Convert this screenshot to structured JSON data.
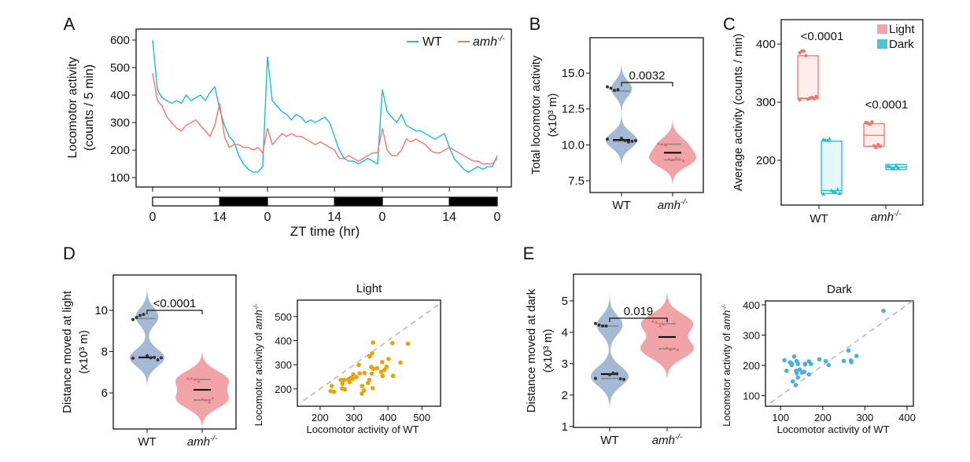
{
  "chart_data": [
    {
      "panel": "A",
      "type": "line",
      "ylabel": [
        "Locomotor activity",
        "(counts / 5 min)"
      ],
      "xlabel": "ZT time (hr)",
      "yticks": [
        100,
        200,
        300,
        400,
        500,
        600
      ],
      "ylim": [
        66,
        640
      ],
      "x_tick_hours": [
        0,
        14,
        24,
        38,
        48,
        62,
        72
      ],
      "x_tick_labels": [
        "0",
        "14",
        "0",
        "14",
        "0",
        "14",
        "0"
      ],
      "light_dark": [
        {
          "phase": "light",
          "from": 0,
          "to": 14
        },
        {
          "phase": "dark",
          "from": 14,
          "to": 24
        },
        {
          "phase": "light",
          "from": 24,
          "to": 38
        },
        {
          "phase": "dark",
          "from": 38,
          "to": 48
        },
        {
          "phase": "light",
          "from": 48,
          "to": 62
        },
        {
          "phase": "dark",
          "from": 62,
          "to": 72
        }
      ],
      "legend": "top-right",
      "series": [
        {
          "name": "WT",
          "sup": "",
          "color": "#19BFC4",
          "values": [
            600,
            420,
            390,
            380,
            370,
            380,
            370,
            400,
            380,
            390,
            400,
            380,
            410,
            430,
            350,
            290,
            250,
            230,
            180,
            150,
            130,
            120,
            120,
            140,
            540,
            380,
            360,
            340,
            330,
            310,
            330,
            320,
            300,
            310,
            300,
            310,
            320,
            300,
            250,
            200,
            170,
            160,
            160,
            150,
            160,
            170,
            160,
            150,
            420,
            340,
            320,
            300,
            330,
            290,
            280,
            270,
            270,
            260,
            250,
            240,
            250,
            260,
            210,
            170,
            150,
            130,
            120,
            130,
            140,
            130,
            140,
            140,
            180
          ]
        },
        {
          "name": "amh",
          "sup": "-/-",
          "color": "#F4756D",
          "values": [
            480,
            380,
            360,
            320,
            300,
            280,
            270,
            290,
            300,
            310,
            290,
            270,
            250,
            290,
            370,
            250,
            210,
            220,
            220,
            210,
            210,
            200,
            210,
            190,
            280,
            220,
            240,
            260,
            250,
            260,
            250,
            250,
            240,
            230,
            220,
            230,
            220,
            210,
            200,
            170,
            170,
            180,
            170,
            160,
            170,
            180,
            190,
            190,
            280,
            200,
            180,
            180,
            200,
            240,
            230,
            240,
            230,
            220,
            200,
            190,
            190,
            200,
            210,
            200,
            190,
            180,
            170,
            160,
            160,
            150,
            150,
            150,
            170
          ]
        }
      ]
    },
    {
      "panel": "B",
      "type": "violin",
      "ylabel": [
        "Total locomotor activity",
        "(x10³ m)"
      ],
      "yticks": [
        "7.5",
        "10.0",
        "12.5",
        "15.0"
      ],
      "ylim": [
        6.68,
        17.47
      ],
      "p_value": "0.0032",
      "groups": [
        {
          "label": "WT",
          "sup": "",
          "color": "#A4B9D3",
          "values": [
            14.05,
            13.95,
            13.8,
            13.85,
            10.45,
            10.3,
            10.2,
            10.25,
            10.3,
            10.4
          ],
          "quartiles": [
            10.25,
            10.35,
            13.75
          ]
        },
        {
          "label": "amh",
          "sup": "-/-",
          "color": "#F1A4A7",
          "values": [
            10.1,
            10.05,
            10.0,
            9.0,
            8.95,
            9.1,
            9.0,
            8.9
          ],
          "quartiles": [
            8.95,
            9.45,
            10.05
          ]
        }
      ]
    },
    {
      "panel": "C",
      "type": "box",
      "ylabel": "Average activity (counts / min)",
      "yticks": [
        200,
        300,
        400
      ],
      "ylim": [
        123,
        442
      ],
      "legend": "top-right",
      "conditions": [
        {
          "name": "Light",
          "stroke": "#F4756D",
          "fill": "#FFEDEC",
          "legend_color": "#F1A4A7"
        },
        {
          "name": "Dark",
          "stroke": "#1DBFC4",
          "fill": "#E3F7F8",
          "legend_color": "#4DC3CB"
        }
      ],
      "groups": [
        {
          "label": "WT",
          "sup": "",
          "p_value": "<0.0001",
          "boxes": [
            {
              "condition": "Light",
              "quartiles": [
                306,
                307,
                380
              ],
              "values": [
                385,
                388,
                388,
                380,
                305,
                307,
                308,
                306,
                310,
                304
              ]
            },
            {
              "condition": "Dark",
              "quartiles": [
                143,
                148,
                233
              ],
              "values": [
                236,
                235,
                234,
                237,
                148,
                146,
                145,
                150,
                143,
                142
              ]
            }
          ]
        },
        {
          "label": "amh",
          "sup": "-/-",
          "p_value": "<0.0001",
          "boxes": [
            {
              "condition": "Light",
              "quartiles": [
                224,
                243,
                263
              ],
              "values": [
                265,
                264,
                262,
                266,
                225,
                222,
                227,
                224
              ]
            },
            {
              "condition": "Dark",
              "quartiles": [
                184,
                188,
                193
              ],
              "values": [
                190,
                189,
                186,
                185,
                191,
                187
              ]
            }
          ]
        }
      ]
    },
    {
      "panel": "D",
      "type": "violin",
      "ylabel": [
        "Distance moved at light",
        "(x10³ m)"
      ],
      "yticks": [
        "6",
        "8",
        "10"
      ],
      "ylim": [
        4.25,
        11.71
      ],
      "p_value": "<0.0001",
      "groups": [
        {
          "label": "WT",
          "sup": "",
          "color": "#A4B9D3",
          "values": [
            9.55,
            9.65,
            9.75,
            9.8,
            7.8,
            7.7,
            7.72,
            7.6,
            7.7,
            7.68
          ],
          "quartiles": [
            7.7,
            7.72,
            9.6
          ]
        },
        {
          "label": "amh",
          "sup": "-/-",
          "color": "#F1A4A7",
          "values": [
            6.7,
            6.7,
            6.65,
            6.55,
            5.7,
            5.65,
            5.55,
            5.75
          ],
          "quartiles": [
            5.65,
            6.15,
            6.65
          ]
        }
      ]
    },
    {
      "panel": "",
      "type": "scatter",
      "title": "Light",
      "xlabel": "Locomotor activity of WT",
      "ylabel": "Locomotor activity of ",
      "ylabel_italic": "amh",
      "ylabel_sup": "-/-",
      "xticks": [
        200,
        300,
        400,
        500
      ],
      "yticks": [
        200,
        300,
        400,
        500
      ],
      "xlim": [
        133,
        555
      ],
      "ylim": [
        128,
        568
      ],
      "reference_line": "y = x (dashed)",
      "color": "#E8A300",
      "points": [
        [
          234,
          212
        ],
        [
          231,
          191
        ],
        [
          241,
          188
        ],
        [
          261,
          237
        ],
        [
          271,
          237
        ],
        [
          266,
          221
        ],
        [
          265,
          201
        ],
        [
          273,
          198
        ],
        [
          283,
          239
        ],
        [
          287,
          228
        ],
        [
          290,
          246
        ],
        [
          298,
          260
        ],
        [
          296,
          242
        ],
        [
          307,
          249
        ],
        [
          314,
          299
        ],
        [
          317,
          264
        ],
        [
          331,
          266
        ],
        [
          324,
          212
        ],
        [
          329,
          194
        ],
        [
          323,
          180
        ],
        [
          341,
          224
        ],
        [
          345,
          237
        ],
        [
          346,
          334
        ],
        [
          353,
          347
        ],
        [
          356,
          392
        ],
        [
          352,
          263
        ],
        [
          351,
          291
        ],
        [
          357,
          283
        ],
        [
          355,
          203
        ],
        [
          368,
          286
        ],
        [
          380,
          271
        ],
        [
          383,
          311
        ],
        [
          384,
          254
        ],
        [
          390,
          279
        ],
        [
          396,
          292
        ],
        [
          402,
          324
        ],
        [
          413,
          390
        ],
        [
          415,
          254
        ],
        [
          437,
          309
        ],
        [
          459,
          387
        ]
      ]
    },
    {
      "panel": "E",
      "type": "violin",
      "ylabel": [
        "Distance moved at dark",
        "(x10³ m)"
      ],
      "yticks": [
        "1",
        "2",
        "3",
        "4",
        "5"
      ],
      "ylim": [
        0.97,
        5.85
      ],
      "p_value": "0.019",
      "groups": [
        {
          "label": "WT",
          "sup": "",
          "color": "#A4B9D3",
          "values": [
            4.28,
            4.23,
            4.2,
            4.2,
            2.65,
            2.7,
            2.68,
            2.52,
            2.5,
            2.53
          ],
          "quartiles": [
            2.53,
            2.67,
            4.2
          ]
        },
        {
          "label": "amh",
          "sup": "-/-",
          "color": "#F1A4A7",
          "values": [
            4.35,
            4.32,
            4.2,
            4.25,
            3.5,
            3.45,
            3.48,
            3.44
          ],
          "quartiles": [
            3.47,
            3.85,
            4.27
          ]
        }
      ]
    },
    {
      "panel": "",
      "type": "scatter",
      "title": "Dark",
      "xlabel": "Locomotor activity of WT",
      "ylabel": "Locomotor activity of ",
      "ylabel_italic": "amh",
      "ylabel_sup": "-/-",
      "xticks": [
        100,
        200,
        300,
        400
      ],
      "yticks": [
        100,
        200,
        300,
        400
      ],
      "xlim": [
        64,
        415
      ],
      "ylim": [
        65,
        413
      ],
      "reference_line": "y = x (dashed)",
      "color": "#4DADE8",
      "points": [
        [
          344,
          380
        ],
        [
          109,
          217
        ],
        [
          114,
          182
        ],
        [
          122,
          210
        ],
        [
          126,
          201
        ],
        [
          127,
          205
        ],
        [
          132,
          229
        ],
        [
          138,
          214
        ],
        [
          141,
          205
        ],
        [
          137,
          182
        ],
        [
          138,
          174
        ],
        [
          145,
          186
        ],
        [
          141,
          160
        ],
        [
          136,
          135
        ],
        [
          129,
          147
        ],
        [
          151,
          176
        ],
        [
          156,
          179
        ],
        [
          158,
          203
        ],
        [
          158,
          205
        ],
        [
          167,
          213
        ],
        [
          172,
          205
        ],
        [
          167,
          170
        ],
        [
          192,
          220
        ],
        [
          207,
          214
        ],
        [
          214,
          201
        ],
        [
          250,
          215
        ],
        [
          261,
          249
        ],
        [
          267,
          216
        ],
        [
          268,
          211
        ],
        [
          280,
          231
        ]
      ]
    }
  ]
}
